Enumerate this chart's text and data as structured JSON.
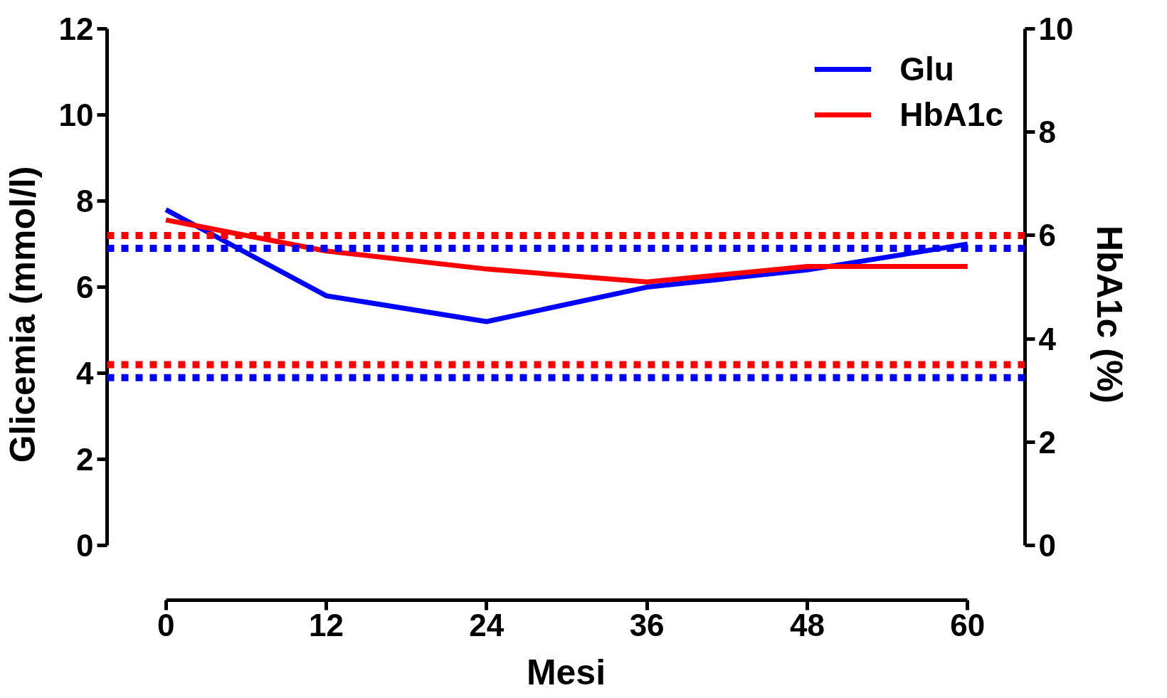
{
  "chart_data": {
    "type": "line",
    "xlabel": "Mesi",
    "ylabel": "Glicemia (mmol/l)",
    "y2label": "HbA1c (%)",
    "x": [
      0,
      12,
      24,
      36,
      48,
      60
    ],
    "series": [
      {
        "name": "Glu",
        "color": "#0000ff",
        "values": [
          7.8,
          5.8,
          5.2,
          6.0,
          6.4,
          7.0
        ]
      },
      {
        "name": "HbA1c",
        "color": "#ff0000",
        "values": [
          6.3,
          5.7,
          5.35,
          5.1,
          5.4,
          5.4
        ],
        "axis": "y2"
      }
    ],
    "xlim": [
      -4.4,
      64.3
    ],
    "xticks": [
      0,
      12,
      24,
      36,
      48,
      60
    ],
    "ylim": [
      -1.27,
      12
    ],
    "yticks": [
      0,
      2,
      4,
      6,
      8,
      10,
      12
    ],
    "y2lim": [
      -1.06,
      10
    ],
    "y2ticks": [
      0,
      2,
      4,
      6,
      8,
      10
    ],
    "ref_lines": [
      {
        "axis": "y",
        "value": 6.9,
        "color": "#0000ff",
        "line_style": "dotted"
      },
      {
        "axis": "y",
        "value": 3.9,
        "color": "#0000ff",
        "line_style": "dotted"
      },
      {
        "axis": "y2",
        "value": 6.0,
        "color": "#ff0000",
        "line_style": "dotted"
      },
      {
        "axis": "y2",
        "value": 3.5,
        "color": "#ff0000",
        "line_style": "dotted"
      }
    ],
    "grid": false,
    "legend": "top right",
    "marker": "none",
    "line_style": "solid"
  }
}
